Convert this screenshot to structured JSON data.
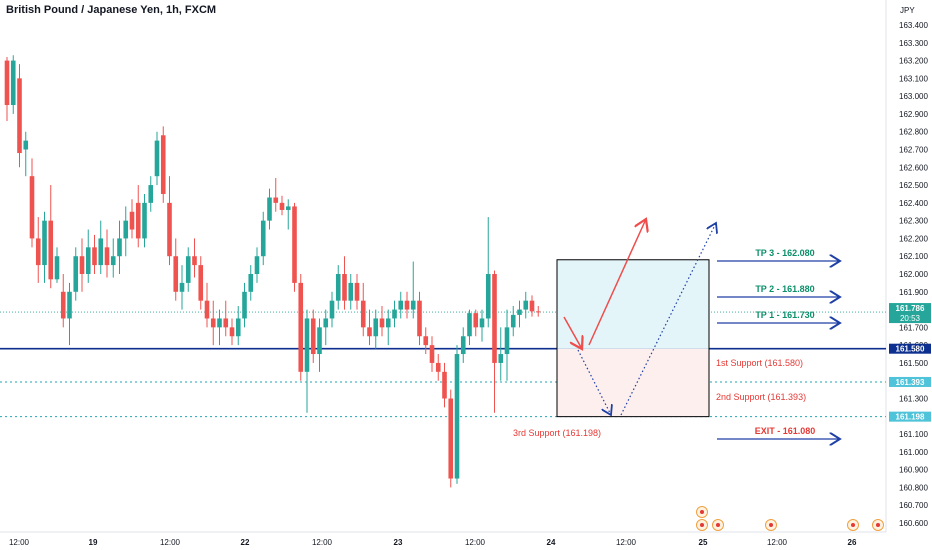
{
  "title": "British Pound / Japanese Yen, 1h, FXCM",
  "currency": "JPY",
  "colors": {
    "up": "#26a69a",
    "down": "#ef5350",
    "blue_line": "#0d2f8f",
    "dotted": "#22a6b3",
    "blue_arrow": "#1e3fa6",
    "red_arrow": "#ef4c4c",
    "green_text": "#0b8f6a",
    "red_text": "#e53935"
  },
  "chart_data": {
    "type": "candlestick",
    "y_axis": {
      "min": 160.6,
      "max": 163.4,
      "ticks": [
        "163.400",
        "163.300",
        "163.200",
        "163.100",
        "163.000",
        "162.900",
        "162.800",
        "162.700",
        "162.600",
        "162.500",
        "162.400",
        "162.300",
        "162.200",
        "162.100",
        "162.000",
        "161.900",
        "161.800",
        "161.700",
        "161.600",
        "161.500",
        "161.400",
        "161.300",
        "161.200",
        "161.100",
        "161.000",
        "160.900",
        "160.800",
        "160.700",
        "160.600"
      ]
    },
    "x_axis": {
      "ticks": [
        "12:00",
        "19",
        "12:00",
        "22",
        "12:00",
        "23",
        "12:00",
        "24",
        "12:00",
        "25",
        "12:00",
        "26"
      ]
    },
    "candles": [
      [
        163.2,
        163.22,
        162.86,
        162.95
      ],
      [
        162.95,
        163.23,
        162.9,
        163.2
      ],
      [
        163.1,
        163.18,
        162.6,
        162.68
      ],
      [
        162.7,
        162.8,
        162.55,
        162.75
      ],
      [
        162.55,
        162.65,
        162.15,
        162.2
      ],
      [
        162.2,
        162.32,
        161.95,
        162.05
      ],
      [
        162.05,
        162.35,
        161.95,
        162.3
      ],
      [
        162.3,
        162.5,
        161.92,
        161.97
      ],
      [
        161.97,
        162.15,
        161.95,
        162.1
      ],
      [
        161.9,
        162.0,
        161.7,
        161.75
      ],
      [
        161.75,
        161.95,
        161.6,
        161.9
      ],
      [
        161.9,
        162.15,
        161.85,
        162.1
      ],
      [
        162.1,
        162.2,
        161.9,
        162.0
      ],
      [
        162.0,
        162.25,
        161.95,
        162.15
      ],
      [
        162.15,
        162.22,
        162.0,
        162.05
      ],
      [
        162.05,
        162.3,
        162.0,
        162.2
      ],
      [
        162.15,
        162.25,
        161.98,
        162.05
      ],
      [
        162.05,
        162.2,
        161.98,
        162.1
      ],
      [
        162.1,
        162.3,
        162.0,
        162.2
      ],
      [
        162.2,
        162.38,
        162.1,
        162.3
      ],
      [
        162.35,
        162.42,
        162.2,
        162.25
      ],
      [
        162.4,
        162.5,
        162.15,
        162.2
      ],
      [
        162.2,
        162.45,
        162.15,
        162.4
      ],
      [
        162.4,
        162.55,
        162.35,
        162.5
      ],
      [
        162.55,
        162.8,
        162.5,
        162.75
      ],
      [
        162.78,
        162.83,
        162.4,
        162.45
      ],
      [
        162.4,
        162.55,
        162.05,
        162.1
      ],
      [
        162.1,
        162.2,
        161.85,
        161.9
      ],
      [
        161.9,
        162.05,
        161.8,
        161.95
      ],
      [
        161.95,
        162.15,
        161.9,
        162.1
      ],
      [
        162.1,
        162.2,
        161.98,
        162.05
      ],
      [
        162.05,
        162.1,
        161.8,
        161.85
      ],
      [
        161.85,
        161.95,
        161.7,
        161.75
      ],
      [
        161.75,
        161.85,
        161.6,
        161.7
      ],
      [
        161.7,
        161.8,
        161.6,
        161.75
      ],
      [
        161.75,
        161.85,
        161.65,
        161.7
      ],
      [
        161.7,
        161.75,
        161.6,
        161.65
      ],
      [
        161.65,
        161.82,
        161.6,
        161.75
      ],
      [
        161.75,
        161.95,
        161.7,
        161.9
      ],
      [
        161.9,
        162.05,
        161.85,
        162.0
      ],
      [
        162.0,
        162.15,
        161.95,
        162.1
      ],
      [
        162.1,
        162.35,
        162.05,
        162.3
      ],
      [
        162.3,
        162.48,
        162.25,
        162.43
      ],
      [
        162.43,
        162.54,
        162.35,
        162.4
      ],
      [
        162.4,
        162.44,
        162.33,
        162.36
      ],
      [
        162.36,
        162.42,
        162.25,
        162.38
      ],
      [
        162.38,
        162.4,
        161.9,
        161.95
      ],
      [
        161.95,
        162.0,
        161.4,
        161.45
      ],
      [
        161.45,
        161.8,
        161.22,
        161.75
      ],
      [
        161.75,
        161.8,
        161.5,
        161.55
      ],
      [
        161.55,
        161.75,
        161.45,
        161.7
      ],
      [
        161.7,
        161.8,
        161.6,
        161.75
      ],
      [
        161.75,
        161.9,
        161.7,
        161.85
      ],
      [
        161.85,
        162.05,
        161.8,
        162.0
      ],
      [
        162.0,
        162.1,
        161.8,
        161.85
      ],
      [
        161.85,
        162.0,
        161.8,
        161.95
      ],
      [
        161.95,
        162.0,
        161.8,
        161.85
      ],
      [
        161.85,
        161.95,
        161.65,
        161.7
      ],
      [
        161.7,
        161.8,
        161.6,
        161.65
      ],
      [
        161.65,
        161.8,
        161.58,
        161.75
      ],
      [
        161.75,
        161.82,
        161.65,
        161.7
      ],
      [
        161.7,
        161.8,
        161.6,
        161.75
      ],
      [
        161.75,
        161.85,
        161.7,
        161.8
      ],
      [
        161.8,
        161.9,
        161.75,
        161.85
      ],
      [
        161.85,
        161.9,
        161.75,
        161.8
      ],
      [
        161.8,
        162.07,
        161.75,
        161.85
      ],
      [
        161.85,
        161.9,
        161.6,
        161.65
      ],
      [
        161.65,
        161.7,
        161.55,
        161.6
      ],
      [
        161.6,
        161.65,
        161.45,
        161.5
      ],
      [
        161.5,
        161.55,
        161.4,
        161.45
      ],
      [
        161.45,
        161.5,
        161.25,
        161.3
      ],
      [
        161.3,
        161.35,
        160.8,
        160.85
      ],
      [
        160.85,
        161.6,
        160.82,
        161.55
      ],
      [
        161.55,
        161.7,
        161.5,
        161.65
      ],
      [
        161.65,
        161.8,
        161.6,
        161.78
      ],
      [
        161.78,
        161.8,
        161.65,
        161.7
      ],
      [
        161.7,
        161.8,
        161.62,
        161.75
      ],
      [
        161.75,
        162.32,
        161.7,
        162.0
      ],
      [
        162.0,
        162.02,
        161.22,
        161.5
      ],
      [
        161.5,
        161.7,
        161.4,
        161.55
      ],
      [
        161.55,
        161.8,
        161.4,
        161.7
      ],
      [
        161.7,
        161.82,
        161.65,
        161.77
      ],
      [
        161.77,
        161.85,
        161.7,
        161.8
      ],
      [
        161.8,
        161.9,
        161.75,
        161.85
      ],
      [
        161.85,
        161.88,
        161.76,
        161.79
      ],
      [
        161.79,
        161.82,
        161.76,
        161.786
      ]
    ],
    "last_price": "161.786",
    "countdown": "20:53",
    "levels": [
      {
        "name": "1st Support (161.580)",
        "value": 161.58,
        "axis_label": "161.580"
      },
      {
        "name": "2nd Support (161.393)",
        "value": 161.393,
        "axis_label": "161.393"
      },
      {
        "name": "3rd Support (161.198)",
        "value": 161.198,
        "axis_label": "161.198"
      }
    ],
    "targets": [
      {
        "label": "TP 3 - 162.080",
        "value": 162.08
      },
      {
        "label": "TP 2 - 161.880",
        "value": 161.88
      },
      {
        "label": "TP 1 - 161.730",
        "value": 161.73
      },
      {
        "label": "EXIT - 161.080",
        "value": 161.08
      }
    ],
    "box": {
      "top": 162.08,
      "bottom": 161.198
    }
  }
}
